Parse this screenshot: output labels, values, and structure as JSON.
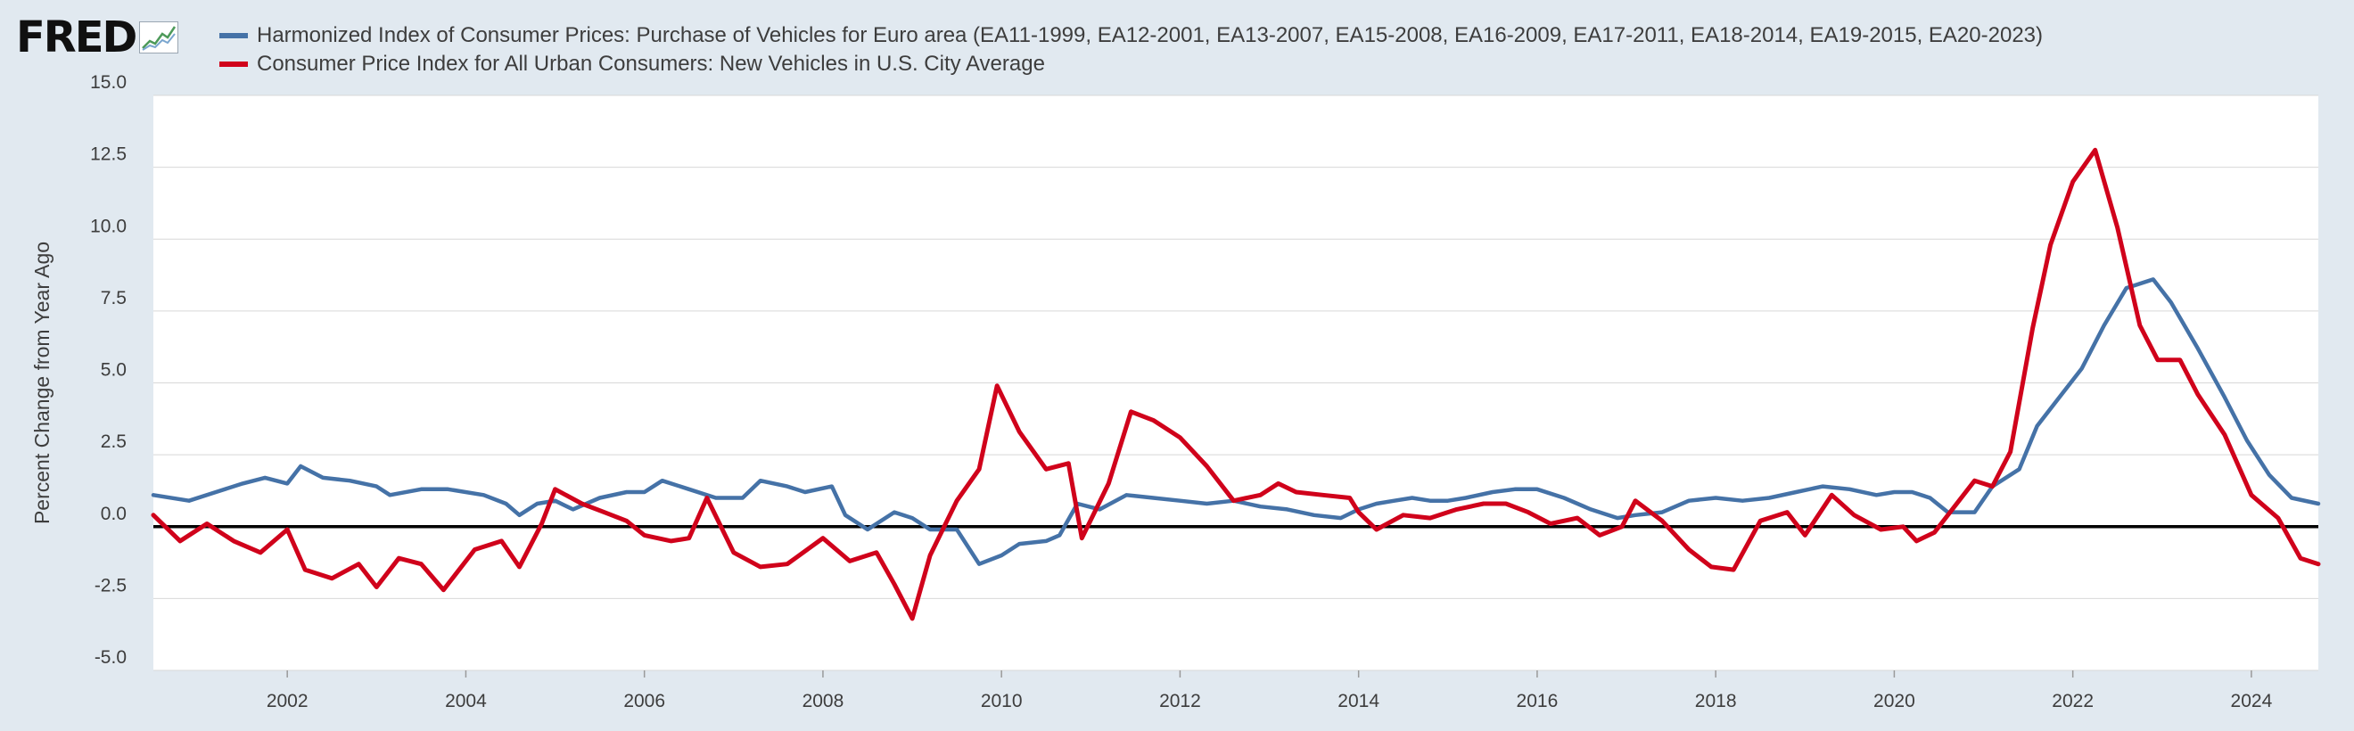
{
  "header": {
    "logo_text": "FRED",
    "logo_icon": "fred-chart-icon"
  },
  "colors": {
    "series_eu": "#4572a7",
    "series_us": "#d0021b",
    "plot_bg": "#ffffff",
    "page_bg": "#e1e9f0",
    "grid": "#d8d8d8",
    "zero_line": "#000000"
  },
  "chart_data": {
    "type": "line",
    "title": "",
    "xlabel": "",
    "ylabel": "Percent Change from Year Ago",
    "xlim": [
      2000.5,
      2024.75
    ],
    "ylim": [
      -5.0,
      15.0
    ],
    "yticks": [
      -5.0,
      -2.5,
      0.0,
      2.5,
      5.0,
      7.5,
      10.0,
      12.5,
      15.0
    ],
    "ytick_labels": [
      "-5.0",
      "-2.5",
      "0.0",
      "2.5",
      "5.0",
      "7.5",
      "10.0",
      "12.5",
      "15.0"
    ],
    "xticks": [
      2002,
      2004,
      2006,
      2008,
      2010,
      2012,
      2014,
      2016,
      2018,
      2020,
      2022,
      2024
    ],
    "xtick_labels": [
      "2002",
      "2004",
      "2006",
      "2008",
      "2010",
      "2012",
      "2014",
      "2016",
      "2018",
      "2020",
      "2022",
      "2024"
    ],
    "grid": true,
    "legend_position": "top-left",
    "series": [
      {
        "name": "Harmonized Index of Consumer Prices: Purchase of Vehicles for Euro area (EA11-1999, EA12-2001, EA13-2007, EA15-2008, EA16-2009, EA17-2011, EA18-2014, EA19-2015, EA20-2023)",
        "color": "#4572a7",
        "points": [
          [
            2000.5,
            1.1
          ],
          [
            2000.9,
            0.9
          ],
          [
            2001.2,
            1.2
          ],
          [
            2001.5,
            1.5
          ],
          [
            2001.75,
            1.7
          ],
          [
            2002.0,
            1.5
          ],
          [
            2002.15,
            2.1
          ],
          [
            2002.4,
            1.7
          ],
          [
            2002.7,
            1.6
          ],
          [
            2003.0,
            1.4
          ],
          [
            2003.15,
            1.1
          ],
          [
            2003.5,
            1.3
          ],
          [
            2003.8,
            1.3
          ],
          [
            2004.2,
            1.1
          ],
          [
            2004.45,
            0.8
          ],
          [
            2004.6,
            0.4
          ],
          [
            2004.8,
            0.8
          ],
          [
            2005.0,
            0.9
          ],
          [
            2005.2,
            0.6
          ],
          [
            2005.5,
            1.0
          ],
          [
            2005.8,
            1.2
          ],
          [
            2006.0,
            1.2
          ],
          [
            2006.2,
            1.6
          ],
          [
            2006.5,
            1.3
          ],
          [
            2006.8,
            1.0
          ],
          [
            2007.1,
            1.0
          ],
          [
            2007.3,
            1.6
          ],
          [
            2007.6,
            1.4
          ],
          [
            2007.8,
            1.2
          ],
          [
            2008.1,
            1.4
          ],
          [
            2008.25,
            0.4
          ],
          [
            2008.5,
            -0.1
          ],
          [
            2008.8,
            0.5
          ],
          [
            2009.0,
            0.3
          ],
          [
            2009.2,
            -0.1
          ],
          [
            2009.5,
            -0.1
          ],
          [
            2009.75,
            -1.3
          ],
          [
            2010.0,
            -1.0
          ],
          [
            2010.2,
            -0.6
          ],
          [
            2010.5,
            -0.5
          ],
          [
            2010.65,
            -0.3
          ],
          [
            2010.85,
            0.8
          ],
          [
            2011.1,
            0.6
          ],
          [
            2011.4,
            1.1
          ],
          [
            2011.7,
            1.0
          ],
          [
            2012.0,
            0.9
          ],
          [
            2012.3,
            0.8
          ],
          [
            2012.6,
            0.9
          ],
          [
            2012.9,
            0.7
          ],
          [
            2013.2,
            0.6
          ],
          [
            2013.5,
            0.4
          ],
          [
            2013.8,
            0.3
          ],
          [
            2014.0,
            0.6
          ],
          [
            2014.2,
            0.8
          ],
          [
            2014.4,
            0.9
          ],
          [
            2014.6,
            1.0
          ],
          [
            2014.8,
            0.9
          ],
          [
            2015.0,
            0.9
          ],
          [
            2015.2,
            1.0
          ],
          [
            2015.5,
            1.2
          ],
          [
            2015.75,
            1.3
          ],
          [
            2016.0,
            1.3
          ],
          [
            2016.3,
            1.0
          ],
          [
            2016.6,
            0.6
          ],
          [
            2016.9,
            0.3
          ],
          [
            2017.1,
            0.4
          ],
          [
            2017.4,
            0.5
          ],
          [
            2017.7,
            0.9
          ],
          [
            2018.0,
            1.0
          ],
          [
            2018.3,
            0.9
          ],
          [
            2018.6,
            1.0
          ],
          [
            2018.9,
            1.2
          ],
          [
            2019.2,
            1.4
          ],
          [
            2019.5,
            1.3
          ],
          [
            2019.8,
            1.1
          ],
          [
            2020.0,
            1.2
          ],
          [
            2020.2,
            1.2
          ],
          [
            2020.4,
            1.0
          ],
          [
            2020.6,
            0.5
          ],
          [
            2020.9,
            0.5
          ],
          [
            2021.1,
            1.4
          ],
          [
            2021.4,
            2.0
          ],
          [
            2021.6,
            3.5
          ],
          [
            2021.85,
            4.5
          ],
          [
            2022.1,
            5.5
          ],
          [
            2022.35,
            7.0
          ],
          [
            2022.6,
            8.3
          ],
          [
            2022.9,
            8.6
          ],
          [
            2023.1,
            7.8
          ],
          [
            2023.4,
            6.2
          ],
          [
            2023.7,
            4.5
          ],
          [
            2023.95,
            3.0
          ],
          [
            2024.2,
            1.8
          ],
          [
            2024.45,
            1.0
          ],
          [
            2024.75,
            0.8
          ]
        ]
      },
      {
        "name": "Consumer Price Index for All Urban Consumers: New Vehicles in U.S. City Average",
        "color": "#d0021b",
        "points": [
          [
            2000.5,
            0.4
          ],
          [
            2000.8,
            -0.5
          ],
          [
            2001.1,
            0.1
          ],
          [
            2001.4,
            -0.5
          ],
          [
            2001.7,
            -0.9
          ],
          [
            2002.0,
            -0.1
          ],
          [
            2002.2,
            -1.5
          ],
          [
            2002.5,
            -1.8
          ],
          [
            2002.8,
            -1.3
          ],
          [
            2003.0,
            -2.1
          ],
          [
            2003.25,
            -1.1
          ],
          [
            2003.5,
            -1.3
          ],
          [
            2003.75,
            -2.2
          ],
          [
            2004.1,
            -0.8
          ],
          [
            2004.4,
            -0.5
          ],
          [
            2004.6,
            -1.4
          ],
          [
            2004.85,
            0.1
          ],
          [
            2005.0,
            1.3
          ],
          [
            2005.3,
            0.8
          ],
          [
            2005.55,
            0.5
          ],
          [
            2005.8,
            0.2
          ],
          [
            2006.0,
            -0.3
          ],
          [
            2006.3,
            -0.5
          ],
          [
            2006.5,
            -0.4
          ],
          [
            2006.7,
            1.0
          ],
          [
            2007.0,
            -0.9
          ],
          [
            2007.3,
            -1.4
          ],
          [
            2007.6,
            -1.3
          ],
          [
            2008.0,
            -0.4
          ],
          [
            2008.3,
            -1.2
          ],
          [
            2008.6,
            -0.9
          ],
          [
            2008.8,
            -2.0
          ],
          [
            2009.0,
            -3.2
          ],
          [
            2009.2,
            -1.0
          ],
          [
            2009.5,
            0.9
          ],
          [
            2009.75,
            2.0
          ],
          [
            2009.95,
            4.9
          ],
          [
            2010.2,
            3.3
          ],
          [
            2010.5,
            2.0
          ],
          [
            2010.75,
            2.2
          ],
          [
            2010.9,
            -0.4
          ],
          [
            2011.2,
            1.5
          ],
          [
            2011.45,
            4.0
          ],
          [
            2011.7,
            3.7
          ],
          [
            2012.0,
            3.1
          ],
          [
            2012.3,
            2.1
          ],
          [
            2012.6,
            0.9
          ],
          [
            2012.9,
            1.1
          ],
          [
            2013.1,
            1.5
          ],
          [
            2013.3,
            1.2
          ],
          [
            2013.6,
            1.1
          ],
          [
            2013.9,
            1.0
          ],
          [
            2014.0,
            0.5
          ],
          [
            2014.2,
            -0.1
          ],
          [
            2014.5,
            0.4
          ],
          [
            2014.8,
            0.3
          ],
          [
            2015.1,
            0.6
          ],
          [
            2015.4,
            0.8
          ],
          [
            2015.65,
            0.8
          ],
          [
            2015.9,
            0.5
          ],
          [
            2016.15,
            0.1
          ],
          [
            2016.45,
            0.3
          ],
          [
            2016.7,
            -0.3
          ],
          [
            2016.95,
            0.0
          ],
          [
            2017.1,
            0.9
          ],
          [
            2017.4,
            0.2
          ],
          [
            2017.7,
            -0.8
          ],
          [
            2017.95,
            -1.4
          ],
          [
            2018.2,
            -1.5
          ],
          [
            2018.5,
            0.2
          ],
          [
            2018.8,
            0.5
          ],
          [
            2019.0,
            -0.3
          ],
          [
            2019.3,
            1.1
          ],
          [
            2019.55,
            0.4
          ],
          [
            2019.85,
            -0.1
          ],
          [
            2020.1,
            0.0
          ],
          [
            2020.25,
            -0.5
          ],
          [
            2020.45,
            -0.2
          ],
          [
            2020.65,
            0.6
          ],
          [
            2020.9,
            1.6
          ],
          [
            2021.1,
            1.4
          ],
          [
            2021.3,
            2.6
          ],
          [
            2021.55,
            6.9
          ],
          [
            2021.75,
            9.8
          ],
          [
            2022.0,
            12.0
          ],
          [
            2022.25,
            13.1
          ],
          [
            2022.5,
            10.4
          ],
          [
            2022.75,
            7.0
          ],
          [
            2022.95,
            5.8
          ],
          [
            2023.2,
            5.8
          ],
          [
            2023.4,
            4.6
          ],
          [
            2023.7,
            3.2
          ],
          [
            2024.0,
            1.1
          ],
          [
            2024.3,
            0.3
          ],
          [
            2024.55,
            -1.1
          ],
          [
            2024.75,
            -1.3
          ]
        ]
      }
    ]
  }
}
